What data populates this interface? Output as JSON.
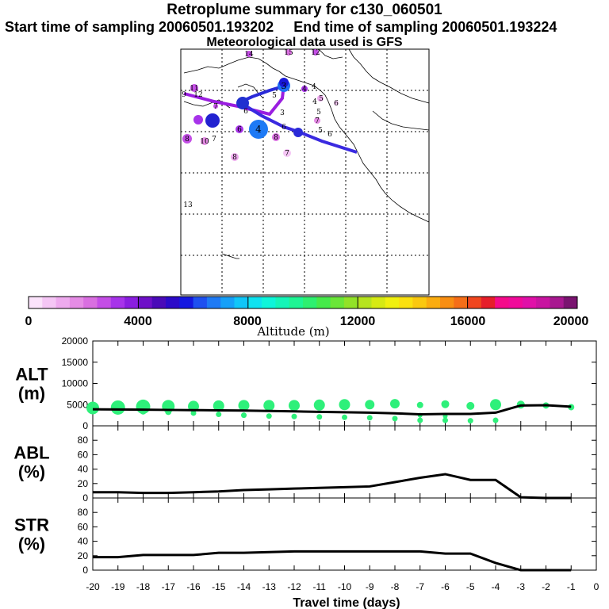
{
  "header": {
    "title": "Retroplume summary for c130_060501",
    "start_label": "Start time of sampling 20060501.193202",
    "end_label": "End time of sampling 20060501.193224",
    "met_label": "Meteorological data used is GFS"
  },
  "colors": {
    "path_blue": "#2a2ad8",
    "path_purple": "#9a1ee0",
    "green_marker": "#2ef07a",
    "line": "#000000"
  },
  "colorbar": {
    "ticks": [
      "0",
      "4000",
      "8000",
      "12000",
      "16000",
      "20000"
    ],
    "label": "Altitude (m)",
    "colors": [
      "#fbe3fb",
      "#f5c6f5",
      "#eeaaee",
      "#e58ce5",
      "#d96fe0",
      "#c44ee6",
      "#a733ea",
      "#8a1ee0",
      "#6e10c8",
      "#4a0ab8",
      "#2c0ac8",
      "#1418e0",
      "#1e50f0",
      "#1e7af5",
      "#16a0f8",
      "#10c6f8",
      "#0ee2f0",
      "#0ef5da",
      "#14f5b8",
      "#1ef594",
      "#2ef070",
      "#46ea4a",
      "#6ae638",
      "#92e228",
      "#b6e41e",
      "#d6ea14",
      "#f0f010",
      "#fae010",
      "#fac810",
      "#faac10",
      "#f88e12",
      "#f56e18",
      "#f0461e",
      "#e61e2a",
      "#f50a8a",
      "#f00a9a",
      "#e010a8",
      "#c814a0",
      "#a81890",
      "#7a1470"
    ]
  },
  "map_labels": [
    {
      "text": "14"
    },
    {
      "text": "15"
    },
    {
      "text": "12"
    },
    {
      "text": "11"
    },
    {
      "text": "9"
    },
    {
      "text": "12"
    },
    {
      "text": "4"
    },
    {
      "text": "4"
    },
    {
      "text": "4"
    },
    {
      "text": "5"
    },
    {
      "text": "6"
    },
    {
      "text": "5"
    },
    {
      "text": "7"
    },
    {
      "text": "5"
    },
    {
      "text": "6"
    },
    {
      "text": "7"
    },
    {
      "text": "6"
    },
    {
      "text": "8"
    },
    {
      "text": "10"
    },
    {
      "text": "7"
    },
    {
      "text": "8"
    },
    {
      "text": "13"
    },
    {
      "text": "3"
    },
    {
      "text": "4"
    },
    {
      "text": "5"
    },
    {
      "text": "7"
    },
    {
      "text": "8"
    },
    {
      "text": "6"
    },
    {
      "text": "6"
    },
    {
      "text": "3"
    }
  ],
  "chart_data": [
    {
      "type": "scatter",
      "name": "ALT",
      "ylabel": "ALT\n(m)",
      "ylabel_lines": [
        "ALT",
        "(m)"
      ],
      "ylim": [
        0,
        20000
      ],
      "yticks": [
        "0",
        "5000",
        "10000",
        "15000",
        "20000"
      ],
      "line_x": [
        -20,
        -19,
        -18,
        -17,
        -16,
        -15,
        -14,
        -13,
        -12,
        -11,
        -10,
        -9,
        -8,
        -7,
        -6,
        -5,
        -4,
        -3,
        -2,
        -1
      ],
      "line_y": [
        3900,
        3850,
        3800,
        3750,
        3700,
        3650,
        3600,
        3500,
        3400,
        3300,
        3200,
        3100,
        2950,
        2700,
        2800,
        2800,
        3100,
        4800,
        4850,
        4500
      ],
      "median_x": [
        -20,
        -19,
        -18,
        -17,
        -16,
        -15,
        -14,
        -13,
        -12,
        -11,
        -10,
        -9,
        -8,
        -7,
        -6,
        -5,
        -4,
        -3,
        -2,
        -1
      ],
      "median_y": [
        4200,
        4300,
        4500,
        4600,
        4600,
        4700,
        4800,
        4800,
        4800,
        4900,
        5000,
        5000,
        5200,
        4900,
        5100,
        4700,
        5000,
        5000,
        4800,
        4400
      ],
      "median_size": [
        8,
        9,
        9,
        8,
        7,
        7,
        7,
        7,
        7,
        7,
        7,
        6,
        6,
        4,
        5,
        5,
        7,
        5,
        4,
        4
      ],
      "low_x": [
        -18,
        -17,
        -16,
        -15,
        -14,
        -13,
        -12,
        -11,
        -10,
        -9,
        -8,
        -7,
        -6,
        -5,
        -4,
        -7,
        -6
      ],
      "low_y": [
        3400,
        3300,
        3000,
        2700,
        2500,
        2300,
        2200,
        2100,
        2000,
        1900,
        1700,
        1300,
        1300,
        1200,
        1300,
        2500,
        2300
      ],
      "low_size": [
        4,
        4,
        3.5,
        3.5,
        3.5,
        3.5,
        3.5,
        3.5,
        3.5,
        3.5,
        3.5,
        3.5,
        3.5,
        3.5,
        3.5,
        3,
        3
      ]
    },
    {
      "type": "line",
      "name": "ABL",
      "ylabel_lines": [
        "ABL",
        "(%)"
      ],
      "ylim": [
        0,
        100
      ],
      "yticks": [
        "0",
        "20",
        "40",
        "60",
        "80"
      ],
      "x": [
        -20,
        -19,
        -18,
        -17,
        -16,
        -15,
        -14,
        -13,
        -12,
        -11,
        -10,
        -9,
        -8,
        -7,
        -6,
        -5,
        -4,
        -3,
        -2,
        -1
      ],
      "y": [
        8,
        8,
        7,
        7,
        8,
        9,
        11,
        12,
        13,
        14,
        15,
        16,
        22,
        28,
        33,
        25,
        25,
        1,
        0,
        0
      ]
    },
    {
      "type": "line",
      "name": "STR",
      "ylabel_lines": [
        "STR",
        "(%)"
      ],
      "ylim": [
        0,
        100
      ],
      "yticks": [
        "0",
        "20",
        "40",
        "60",
        "80"
      ],
      "x": [
        -20,
        -19,
        -18,
        -17,
        -16,
        -15,
        -14,
        -13,
        -12,
        -11,
        -10,
        -9,
        -8,
        -7,
        -6,
        -5,
        -4,
        -3,
        -2,
        -1
      ],
      "y": [
        18,
        18,
        21,
        21,
        21,
        24,
        24,
        25,
        26,
        26,
        26,
        26,
        26,
        26,
        23,
        23,
        10,
        0,
        0,
        0
      ],
      "xlabel": "Travel time (days)",
      "xlim": [
        -20,
        0
      ],
      "xticks": [
        "-20",
        "-19",
        "-18",
        "-17",
        "-16",
        "-15",
        "-14",
        "-13",
        "-12",
        "-11",
        "-10",
        "-9",
        "-8",
        "-7",
        "-6",
        "-5",
        "-4",
        "-3",
        "-2",
        "-1",
        "0"
      ]
    }
  ]
}
